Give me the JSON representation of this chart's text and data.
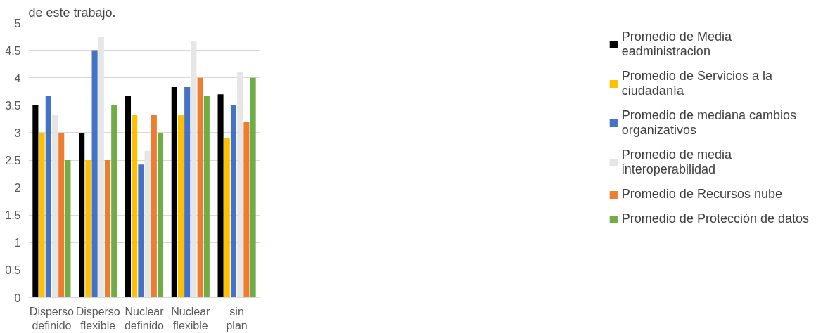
{
  "chart_data": {
    "type": "bar",
    "annotations": [
      "de este trabajo."
    ],
    "categories": [
      "Disperso definido",
      "Disperso flexible",
      "Nuclear definido",
      "Nuclear flexible",
      "sin plan"
    ],
    "series": [
      {
        "name": "Promedio de Media eadministracion",
        "color": "#000000",
        "values": [
          3.5,
          3.0,
          3.67,
          3.83,
          3.7
        ]
      },
      {
        "name": "Promedio de Servicios a la ciudadanía",
        "color": "#ffc000",
        "values": [
          3.0,
          2.5,
          3.33,
          3.33,
          2.9
        ]
      },
      {
        "name": "Promedio de mediana cambios organizativos",
        "color": "#4472c4",
        "values": [
          3.67,
          4.5,
          2.42,
          3.83,
          3.5
        ]
      },
      {
        "name": "Promedio de media interoperabilidad",
        "color": "#e7e6e6",
        "values": [
          3.33,
          4.75,
          2.67,
          4.67,
          4.1
        ]
      },
      {
        "name": "Promedio de Recursos nube",
        "color": "#ed7d31",
        "values": [
          3.0,
          2.5,
          3.33,
          4.0,
          3.2
        ]
      },
      {
        "name": "Promedio de Protección de datos",
        "color": "#70ad47",
        "values": [
          2.5,
          3.5,
          3.0,
          3.67,
          4.0
        ]
      }
    ],
    "ylim": [
      0,
      5
    ],
    "yticks": [
      0,
      {
        "value": 0.5,
        "label": "0.5"
      },
      1,
      {
        "value": 1.5,
        "label": "1.5"
      },
      2,
      {
        "value": 2.5,
        "label": "2.5"
      },
      3,
      {
        "value": 3.5,
        "label": "3.5"
      },
      4,
      {
        "value": 4.5,
        "label": "4.5"
      },
      5
    ],
    "grid": "y",
    "legend": "right"
  }
}
